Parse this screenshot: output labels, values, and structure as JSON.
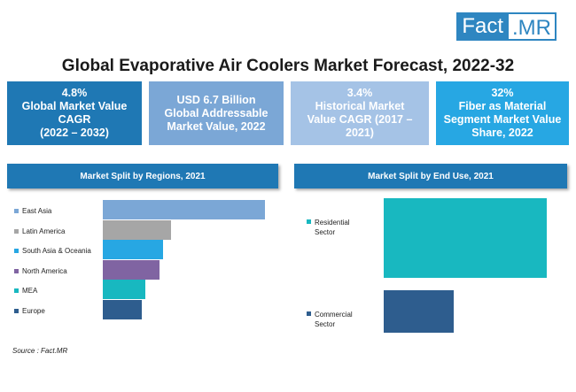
{
  "logo": {
    "part1": "Fact",
    "part2": ".MR"
  },
  "title": "Global Evaporative Air Coolers Market Forecast, 2022-32",
  "kpis": [
    {
      "lines": [
        "4.8%",
        "Global Market Value",
        "CAGR",
        "(2022 – 2032)"
      ],
      "color": "#1f78b4"
    },
    {
      "lines": [
        "USD 6.7 Billion",
        "Global Addressable",
        "Market Value, 2022"
      ],
      "color": "#7ba7d6"
    },
    {
      "lines": [
        "3.4%",
        "Historical Market",
        "Value CAGR (2017 –",
        "2021)"
      ],
      "color": "#a5c3e6"
    },
    {
      "lines": [
        "32%",
        "Fiber as Material",
        "Segment Market Value",
        "Share, 2022"
      ],
      "color": "#27a7e3"
    }
  ],
  "source": "Source : Fact.MR",
  "chart_data": [
    {
      "type": "bar",
      "orientation": "horizontal",
      "title": "Market Split by Regions, 2021",
      "categories": [
        "East Asia",
        "Latin America",
        "South Asia & Oceania",
        "North America",
        "MEA",
        "Europe"
      ],
      "values": [
        100,
        42,
        37,
        35,
        26,
        24
      ],
      "colors": [
        "#7ba7d6",
        "#a6a6a6",
        "#27a7e3",
        "#8064a2",
        "#18b8c0",
        "#2e5d8e"
      ]
    },
    {
      "type": "bar",
      "orientation": "vertical-stack",
      "title": "Market Split by End Use, 2021",
      "categories": [
        "Residential Sector",
        "Commercial Sector"
      ],
      "values": [
        65,
        35
      ],
      "colors": [
        "#18b8c0",
        "#2e5d8e"
      ]
    }
  ]
}
